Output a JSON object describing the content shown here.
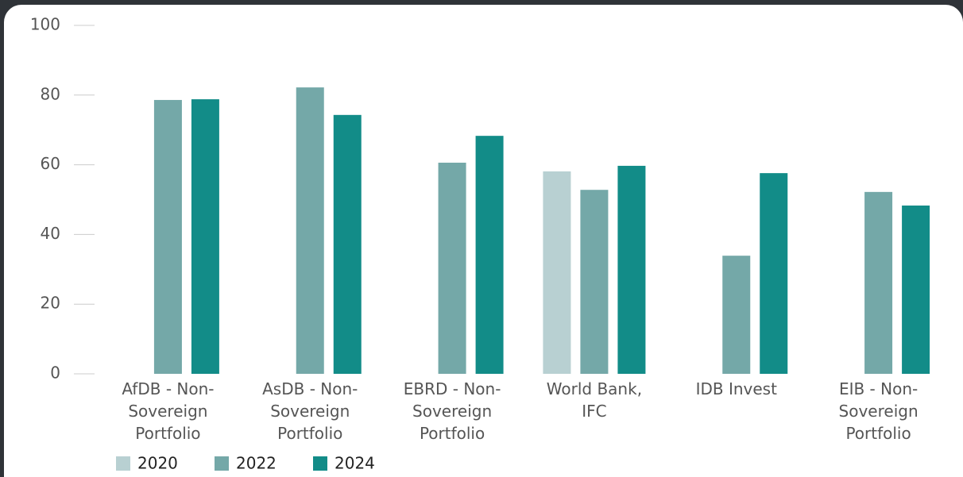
{
  "chart_data": {
    "type": "bar",
    "categories": [
      "AfDB - Non-Sovereign Portfolio",
      "AsDB - Non-Sovereign Portfolio",
      "EBRD - Non-Sovereign Portfolio",
      "World Bank, IFC",
      "IDB Invest",
      "EIB - Non-Sovereign Portfolio"
    ],
    "series": [
      {
        "name": "2020",
        "color": "#b8d0d2",
        "values": [
          null,
          null,
          null,
          58.1,
          null,
          null
        ]
      },
      {
        "name": "2022",
        "color": "#74a8a8",
        "values": [
          78.6,
          82.2,
          60.6,
          52.8,
          33.9,
          52.2
        ]
      },
      {
        "name": "2024",
        "color": "#128c88",
        "values": [
          78.8,
          74.3,
          68.3,
          59.7,
          57.6,
          48.3
        ]
      }
    ],
    "ylim": [
      0,
      100
    ],
    "yticks": [
      0,
      20,
      40,
      60,
      80,
      100
    ]
  }
}
